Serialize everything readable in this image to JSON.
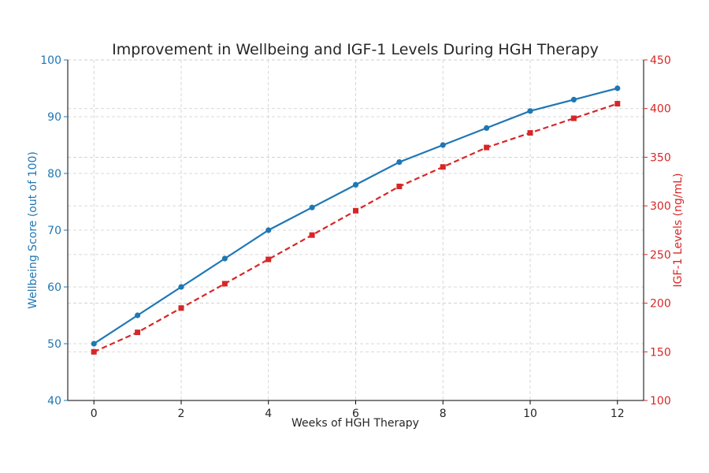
{
  "chart_data": {
    "type": "line",
    "title": "Improvement in Wellbeing and IGF-1 Levels During HGH Therapy",
    "xlabel": "Weeks of HGH Therapy",
    "ylabel_left": "Wellbeing Score (out of 100)",
    "ylabel_right": "IGF-1 Levels (ng/mL)",
    "x": [
      0,
      1,
      2,
      3,
      4,
      5,
      6,
      7,
      8,
      9,
      10,
      11,
      12
    ],
    "xlim": [
      -0.6,
      12.6
    ],
    "x_ticks": [
      0,
      2,
      4,
      6,
      8,
      10,
      12
    ],
    "ylim_left": [
      40,
      100
    ],
    "y_ticks_left": [
      40,
      50,
      60,
      70,
      80,
      90,
      100
    ],
    "ylim_right": [
      100,
      450
    ],
    "y_ticks_right": [
      100,
      150,
      200,
      250,
      300,
      350,
      400,
      450
    ],
    "grid": true,
    "legend": "none",
    "series": [
      {
        "axis": "left",
        "color": "#1f77b4",
        "style": "solid",
        "marker": "circle",
        "values": [
          50,
          55,
          60,
          65,
          70,
          74,
          78,
          82,
          85,
          88,
          91,
          93,
          95
        ]
      },
      {
        "axis": "right",
        "color": "#d62728",
        "style": "dashed",
        "marker": "square",
        "values": [
          150,
          170,
          195,
          220,
          245,
          270,
          295,
          320,
          340,
          360,
          375,
          390,
          405
        ]
      }
    ],
    "colors": {
      "left_axis": "#1f77b4",
      "right_axis": "#d62728",
      "text": "#262626"
    }
  }
}
